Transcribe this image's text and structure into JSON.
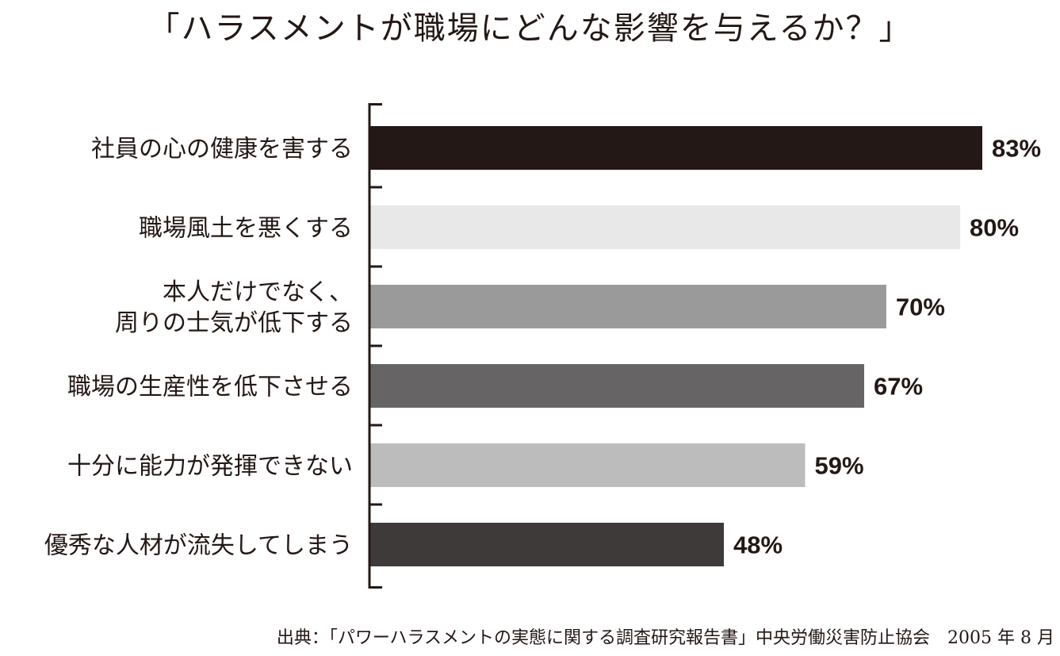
{
  "chart_data": {
    "type": "bar",
    "orientation": "horizontal",
    "title": "「ハラスメントが職場にどんな影響を与えるか？」",
    "categories": [
      [
        "社員の心の健康を害する"
      ],
      [
        "職場風土を悪くする"
      ],
      [
        "本人だけでなく、",
        "周りの士気が低下する"
      ],
      [
        "職場の生産性を低下させる"
      ],
      [
        "十分に能力が発揮できない"
      ],
      [
        "優秀な人材が流失してしまう"
      ]
    ],
    "values": [
      83,
      80,
      70,
      67,
      59,
      48
    ],
    "value_labels": [
      "83%",
      "80%",
      "70%",
      "67%",
      "59%",
      "48%"
    ],
    "bar_colors": [
      "#231815",
      "#e8e8e8",
      "#9a9a9a",
      "#666464",
      "#bcbcbc",
      "#3e3a39"
    ],
    "xlim": [
      0,
      100
    ],
    "grid": false
  },
  "source": "出典：「パワーハラスメントの実態に関する調査研究報告書」中央労働災害防止協会　2005 年 8 月"
}
